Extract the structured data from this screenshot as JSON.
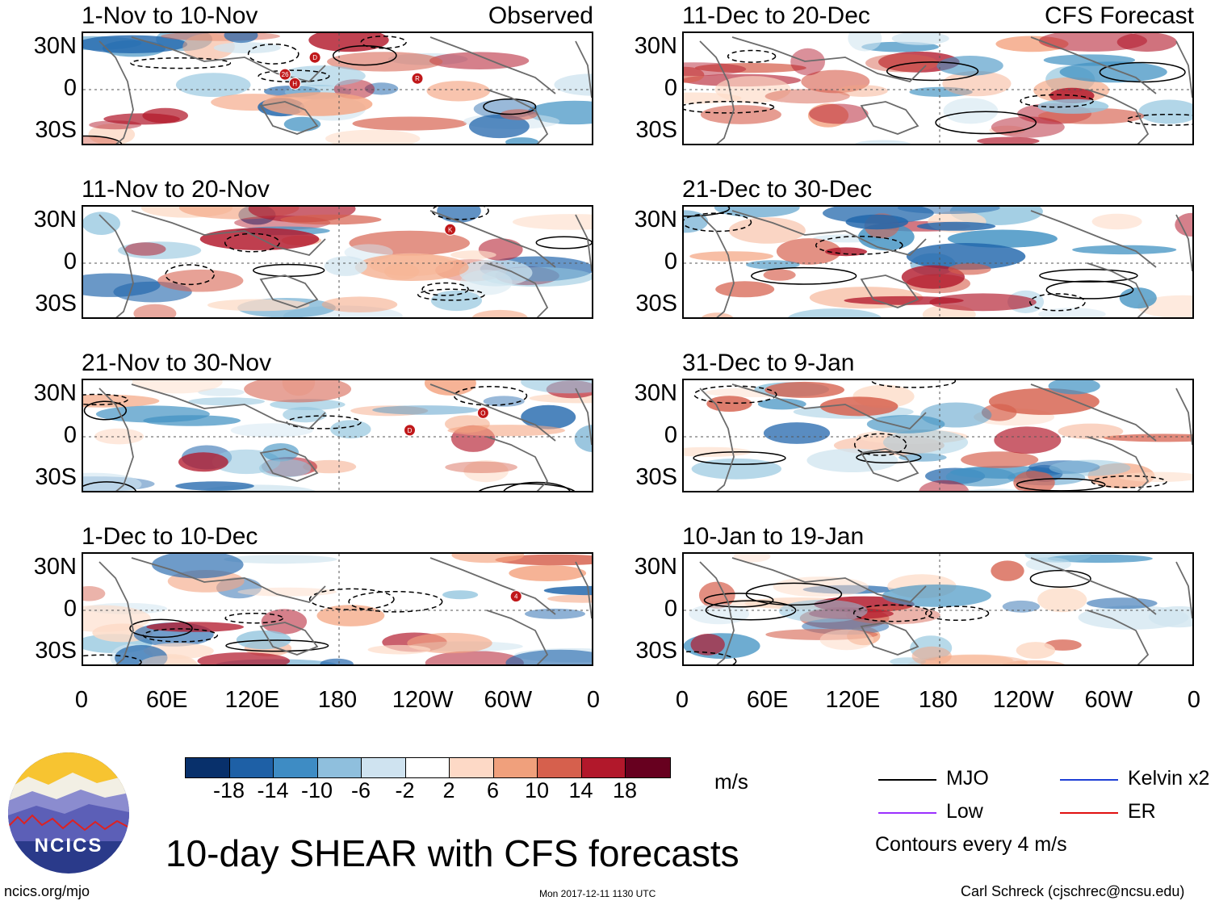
{
  "panels_left": [
    {
      "title": "1-Nov to 10-Nov",
      "tag": "Observed"
    },
    {
      "title": "11-Nov to 20-Nov",
      "tag": ""
    },
    {
      "title": "21-Nov to 30-Nov",
      "tag": ""
    },
    {
      "title": "1-Dec to 10-Dec",
      "tag": ""
    }
  ],
  "panels_right": [
    {
      "title": "11-Dec to 20-Dec",
      "tag": "CFS Forecast"
    },
    {
      "title": "21-Dec to 30-Dec",
      "tag": ""
    },
    {
      "title": "31-Dec to 9-Jan",
      "tag": ""
    },
    {
      "title": "10-Jan to 19-Jan",
      "tag": ""
    }
  ],
  "lat_labels": [
    "30N",
    "0",
    "30S"
  ],
  "lon_labels": [
    "0",
    "60E",
    "120E",
    "180",
    "120W",
    "60W",
    "0"
  ],
  "storm_markers": [
    {
      "panel": 0,
      "labels": [
        "R",
        "D",
        "H",
        "26"
      ]
    },
    {
      "panel": 1,
      "labels": [
        "K"
      ]
    },
    {
      "panel": 2,
      "labels": [
        "O",
        "D"
      ]
    },
    {
      "panel": 3,
      "labels": [
        "4"
      ]
    }
  ],
  "colorbar": {
    "ticks": [
      "-18",
      "-14",
      "-10",
      "-6",
      "-2",
      "2",
      "6",
      "10",
      "14",
      "18"
    ],
    "colors": [
      "#08306b",
      "#1e60a6",
      "#3e8cc4",
      "#8fbfdd",
      "#cfe3f0",
      "#ffffff",
      "#fdd9c6",
      "#f0a07c",
      "#d6604d",
      "#b2182b",
      "#67001f"
    ],
    "unit": "m/s"
  },
  "legend": [
    {
      "label": "MJO",
      "color": "#000000"
    },
    {
      "label": "Kelvin x2",
      "color": "#1f3fd6"
    },
    {
      "label": "Low",
      "color": "#9b30ff"
    },
    {
      "label": "ER",
      "color": "#e01010"
    }
  ],
  "contour_note": "Contours every 4 m/s",
  "main_title": "10-day SHEAR with CFS forecasts",
  "logo_text": "NCICS",
  "footer": {
    "website": "ncics.org/mjo",
    "timestamp": "Mon 2017-12-11 1130 UTC",
    "author": "Carl Schreck (cjschrec@ncsu.edu)"
  }
}
